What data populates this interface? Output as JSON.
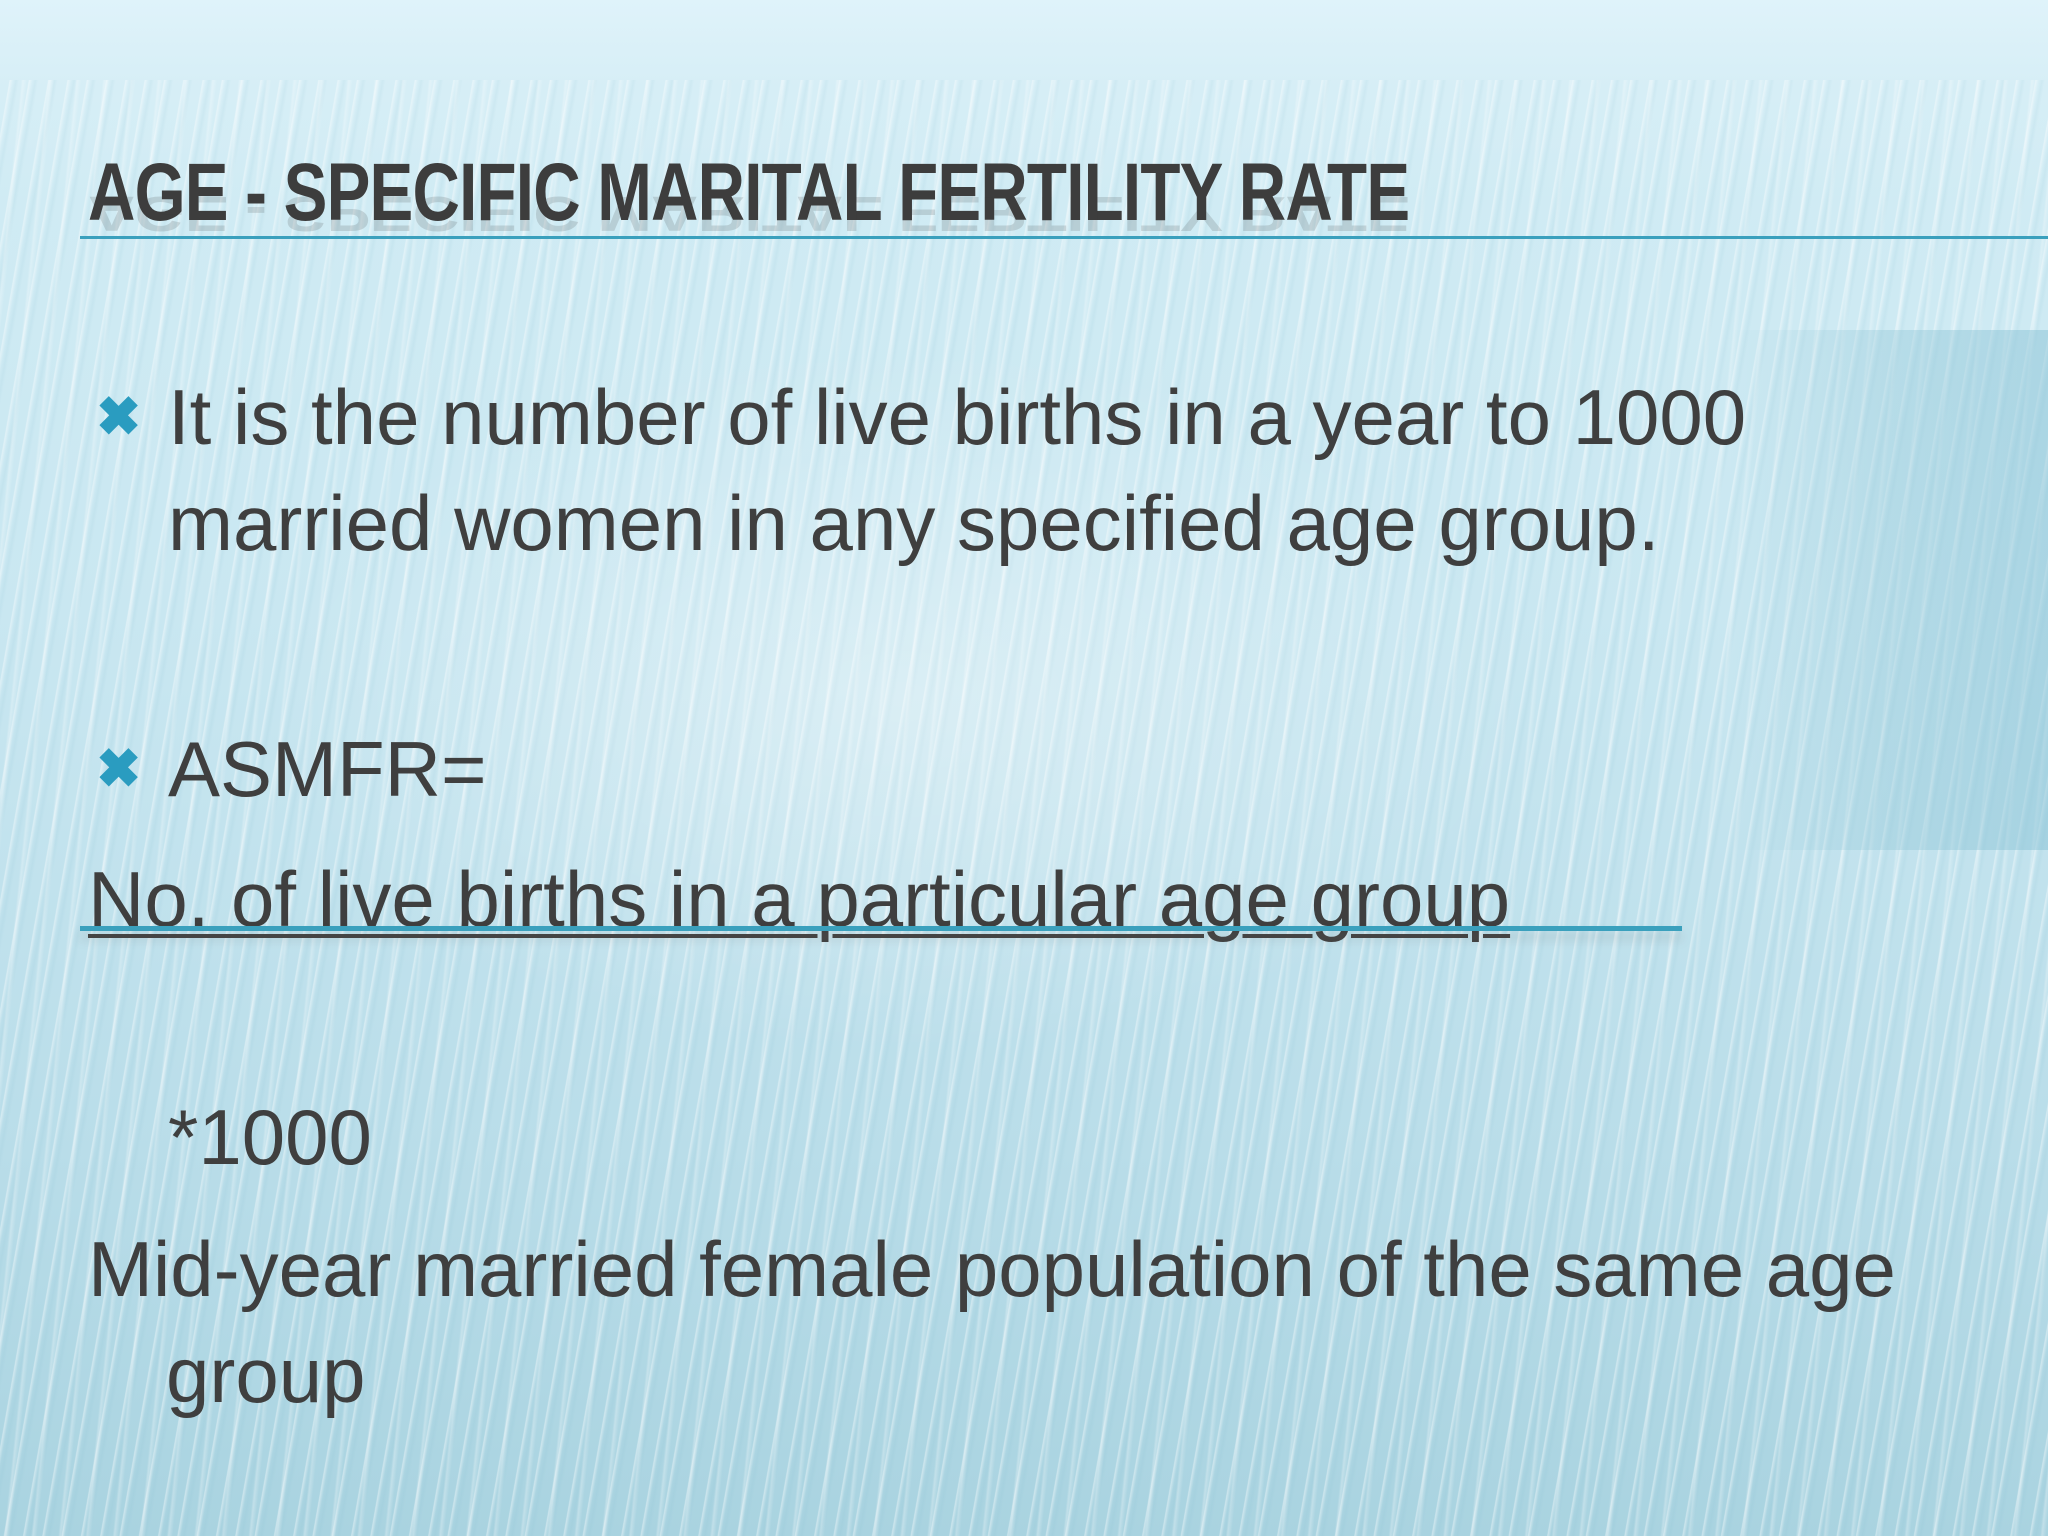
{
  "slide": {
    "title": "AGE - SPECIFIC MARITAL FERTILITY RATE",
    "bullets": [
      {
        "marker": "✖",
        "text": "It is the number of live births in a year to 1000 married women in any specified age group."
      },
      {
        "marker": "✖",
        "text": "ASMFR="
      }
    ],
    "formula": {
      "numerator": "No. of live births in a particular age group",
      "multiplier": "*1000",
      "denominator": "Mid-year married female population of the same age group"
    }
  },
  "colors": {
    "accent": "#2a9cc0",
    "text": "#3f3f3f",
    "title": "#3d3d3d",
    "rule": "#3aa0bd"
  }
}
